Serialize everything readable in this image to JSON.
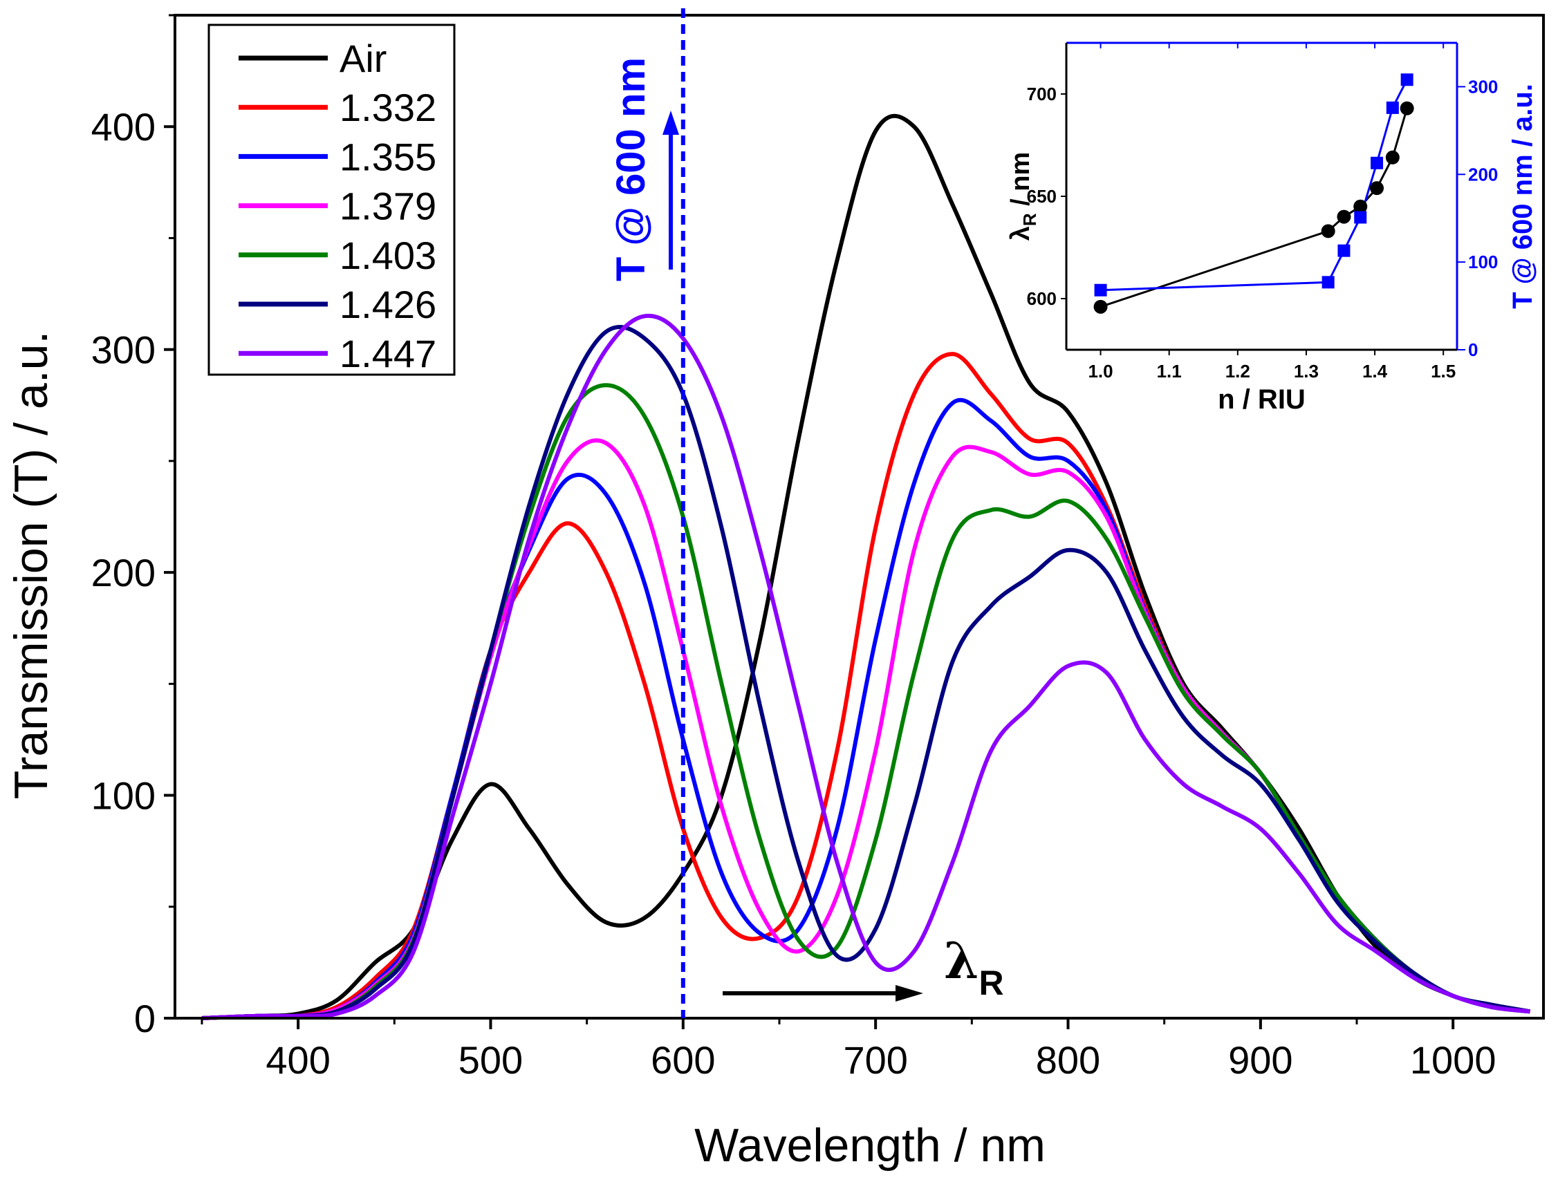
{
  "chart_data": [
    {
      "type": "line",
      "title": "",
      "xlabel": "Wavelength / nm",
      "ylabel": "Transmission (T) / a.u.",
      "xlim": [
        336,
        1047
      ],
      "ylim": [
        0,
        450
      ],
      "xticks": [
        400,
        500,
        600,
        700,
        800,
        900,
        1000
      ],
      "yticks": [
        0,
        100,
        200,
        300,
        400
      ],
      "legend_position": "top-left",
      "x": [
        350,
        380,
        400,
        420,
        440,
        460,
        480,
        500,
        520,
        540,
        560,
        580,
        600,
        620,
        640,
        660,
        680,
        700,
        720,
        740,
        760,
        780,
        800,
        820,
        840,
        860,
        880,
        900,
        920,
        940,
        960,
        980,
        1000,
        1020,
        1040
      ],
      "series": [
        {
          "name": "Air",
          "color": "#000000",
          "values": [
            0,
            1,
            2,
            8,
            25,
            40,
            80,
            105,
            85,
            60,
            43,
            45,
            65,
            100,
            170,
            260,
            340,
            398,
            400,
            365,
            325,
            285,
            272,
            240,
            190,
            150,
            130,
            110,
            85,
            55,
            32,
            18,
            10,
            5,
            3
          ]
        },
        {
          "name": "1.332",
          "color": "#ff0000",
          "values": [
            0,
            1,
            1,
            5,
            18,
            40,
            100,
            165,
            200,
            222,
            200,
            150,
            85,
            45,
            36,
            55,
            120,
            220,
            280,
            298,
            280,
            260,
            258,
            230,
            185,
            148,
            128,
            110,
            82,
            55,
            35,
            20,
            10,
            6,
            3
          ]
        },
        {
          "name": "1.355",
          "color": "#0000ff",
          "values": [
            0,
            1,
            1,
            4,
            16,
            38,
            100,
            165,
            210,
            242,
            235,
            195,
            125,
            65,
            38,
            40,
            85,
            170,
            240,
            276,
            268,
            252,
            250,
            228,
            183,
            148,
            128,
            110,
            82,
            55,
            35,
            20,
            10,
            6,
            3
          ]
        },
        {
          "name": "1.379",
          "color": "#ff00ff",
          "values": [
            0,
            1,
            1,
            4,
            15,
            36,
            98,
            162,
            212,
            250,
            258,
            230,
            165,
            95,
            48,
            30,
            55,
            120,
            210,
            252,
            254,
            244,
            245,
            225,
            182,
            148,
            128,
            110,
            82,
            55,
            35,
            20,
            10,
            6,
            3
          ]
        },
        {
          "name": "1.403",
          "color": "#008000",
          "values": [
            0,
            1,
            1,
            3,
            14,
            35,
            98,
            165,
            225,
            270,
            284,
            270,
            225,
            150,
            80,
            35,
            32,
            80,
            155,
            215,
            228,
            225,
            232,
            215,
            180,
            146,
            127,
            110,
            82,
            55,
            35,
            20,
            10,
            6,
            3
          ]
        },
        {
          "name": "1.426",
          "color": "#000080",
          "values": [
            0,
            1,
            1,
            3,
            13,
            34,
            98,
            165,
            230,
            280,
            308,
            305,
            280,
            220,
            140,
            70,
            28,
            40,
            95,
            160,
            185,
            198,
            210,
            200,
            165,
            135,
            118,
            105,
            80,
            52,
            34,
            20,
            10,
            6,
            3
          ]
        },
        {
          "name": "1.447",
          "color": "#8b00ff",
          "values": [
            0,
            1,
            1,
            2,
            10,
            30,
            90,
            150,
            215,
            265,
            300,
            315,
            305,
            270,
            210,
            140,
            70,
            25,
            30,
            70,
            120,
            140,
            158,
            155,
            125,
            105,
            95,
            85,
            65,
            42,
            30,
            18,
            10,
            5,
            3
          ]
        }
      ],
      "annotations": {
        "vline_wavelength": 600,
        "vline_label": "T @ 600 nm",
        "shift_label_main": "λ",
        "shift_label_sub": "R"
      }
    },
    {
      "type": "scatter",
      "title": "",
      "xlabel": "n / RIU",
      "ylabel_main": "λ",
      "ylabel_sub": "R",
      "ylabel_rest": " / nm",
      "y2label": "T @ 600 nm / a.u.",
      "xlim": [
        0.95,
        1.52
      ],
      "ylim": [
        575,
        725
      ],
      "y2lim": [
        0,
        350
      ],
      "xticks": [
        "1.0",
        "1.1",
        "1.2",
        "1.3",
        "1.4",
        "1.5"
      ],
      "yticks": [
        "600",
        "650",
        "700"
      ],
      "y2ticks": [
        "0",
        "100",
        "200",
        "300"
      ],
      "x": [
        1.0,
        1.332,
        1.355,
        1.379,
        1.403,
        1.426,
        1.447
      ],
      "series": [
        {
          "name": "lambda_R",
          "axis": "left",
          "color": "#000000",
          "marker": "circle",
          "values": [
            596,
            633,
            640,
            645,
            654,
            669,
            693
          ]
        },
        {
          "name": "T_600",
          "axis": "right",
          "color": "#0000ff",
          "marker": "square",
          "values": [
            68,
            77,
            113,
            151,
            213,
            276,
            308
          ]
        }
      ]
    }
  ]
}
